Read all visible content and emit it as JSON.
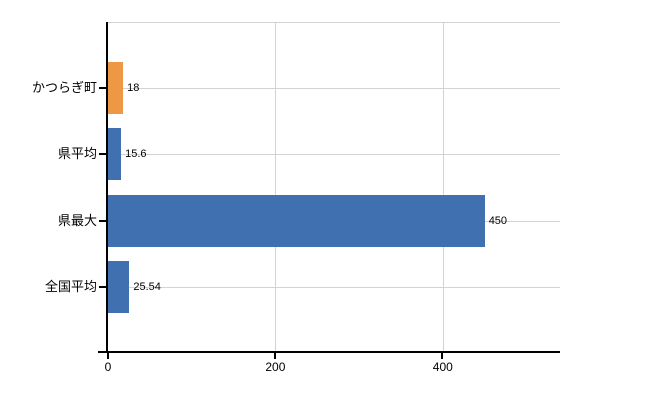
{
  "page": {
    "background_color": "#ffffff"
  },
  "chart_data": {
    "type": "bar",
    "orientation": "horizontal",
    "title": "",
    "categories": [
      "かつらぎ町",
      "県平均",
      "県最大",
      "全国平均"
    ],
    "values": [
      18,
      15.6,
      450,
      25.54
    ],
    "value_labels": [
      "18",
      "15.6",
      "450",
      "25.54"
    ],
    "bar_colors": [
      "#EE9845",
      "#4170B0",
      "#4170B0",
      "#4170B0"
    ],
    "highlight_color": "#EE9845",
    "series_color": "#4170B0",
    "x_tick_labels": [
      "0",
      "200",
      "400"
    ],
    "x_tick_values": [
      0,
      200,
      400
    ],
    "xlim": [
      0,
      540
    ],
    "grid": true,
    "grid_color": "#d3d3d3",
    "axis_color": "#000000",
    "legend": "none",
    "xlabel": "",
    "ylabel": ""
  }
}
